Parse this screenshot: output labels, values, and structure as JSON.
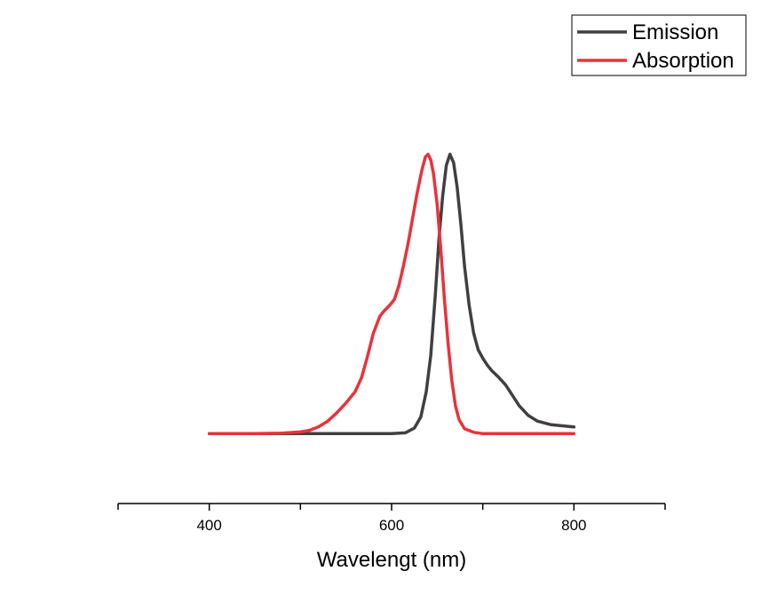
{
  "chart_data": {
    "type": "line",
    "title": "",
    "xlabel": "Wavelengt (nm)",
    "ylabel": "",
    "xlim": [
      300,
      900
    ],
    "ylim": [
      -0.25,
      1.25
    ],
    "x_ticks_major": [
      400,
      600,
      800
    ],
    "x_ticks_minor": [
      300,
      500,
      700,
      900
    ],
    "y_axis_visible": false,
    "grid": false,
    "legend_position": "top-right",
    "series": [
      {
        "name": "Emission",
        "color": "#404040",
        "points": [
          [
            400,
            0.0
          ],
          [
            600,
            0.0
          ],
          [
            615,
            0.003
          ],
          [
            625,
            0.02
          ],
          [
            632,
            0.06
          ],
          [
            638,
            0.15
          ],
          [
            643,
            0.28
          ],
          [
            648,
            0.5
          ],
          [
            652,
            0.7
          ],
          [
            656,
            0.85
          ],
          [
            660,
            0.96
          ],
          [
            664,
            1.0
          ],
          [
            668,
            0.97
          ],
          [
            672,
            0.88
          ],
          [
            676,
            0.75
          ],
          [
            680,
            0.6
          ],
          [
            685,
            0.46
          ],
          [
            690,
            0.36
          ],
          [
            695,
            0.3
          ],
          [
            700,
            0.27
          ],
          [
            705,
            0.245
          ],
          [
            710,
            0.225
          ],
          [
            718,
            0.2
          ],
          [
            725,
            0.175
          ],
          [
            732,
            0.14
          ],
          [
            740,
            0.1
          ],
          [
            750,
            0.065
          ],
          [
            760,
            0.045
          ],
          [
            775,
            0.032
          ],
          [
            790,
            0.027
          ],
          [
            800,
            0.024
          ]
        ]
      },
      {
        "name": "Absorption",
        "color": "#e8333a",
        "points": [
          [
            400,
            0.0
          ],
          [
            450,
            0.0
          ],
          [
            480,
            0.002
          ],
          [
            500,
            0.006
          ],
          [
            510,
            0.012
          ],
          [
            520,
            0.025
          ],
          [
            530,
            0.045
          ],
          [
            540,
            0.075
          ],
          [
            550,
            0.11
          ],
          [
            560,
            0.15
          ],
          [
            567,
            0.2
          ],
          [
            573,
            0.27
          ],
          [
            580,
            0.36
          ],
          [
            587,
            0.42
          ],
          [
            592,
            0.44
          ],
          [
            598,
            0.46
          ],
          [
            603,
            0.48
          ],
          [
            608,
            0.53
          ],
          [
            613,
            0.6
          ],
          [
            618,
            0.68
          ],
          [
            623,
            0.77
          ],
          [
            628,
            0.86
          ],
          [
            633,
            0.94
          ],
          [
            637,
            0.99
          ],
          [
            640,
            1.0
          ],
          [
            643,
            0.98
          ],
          [
            646,
            0.93
          ],
          [
            650,
            0.82
          ],
          [
            654,
            0.66
          ],
          [
            658,
            0.48
          ],
          [
            662,
            0.32
          ],
          [
            666,
            0.19
          ],
          [
            670,
            0.1
          ],
          [
            674,
            0.05
          ],
          [
            680,
            0.018
          ],
          [
            690,
            0.005
          ],
          [
            700,
            0.0
          ],
          [
            750,
            0.0
          ],
          [
            800,
            0.0
          ]
        ]
      }
    ]
  }
}
